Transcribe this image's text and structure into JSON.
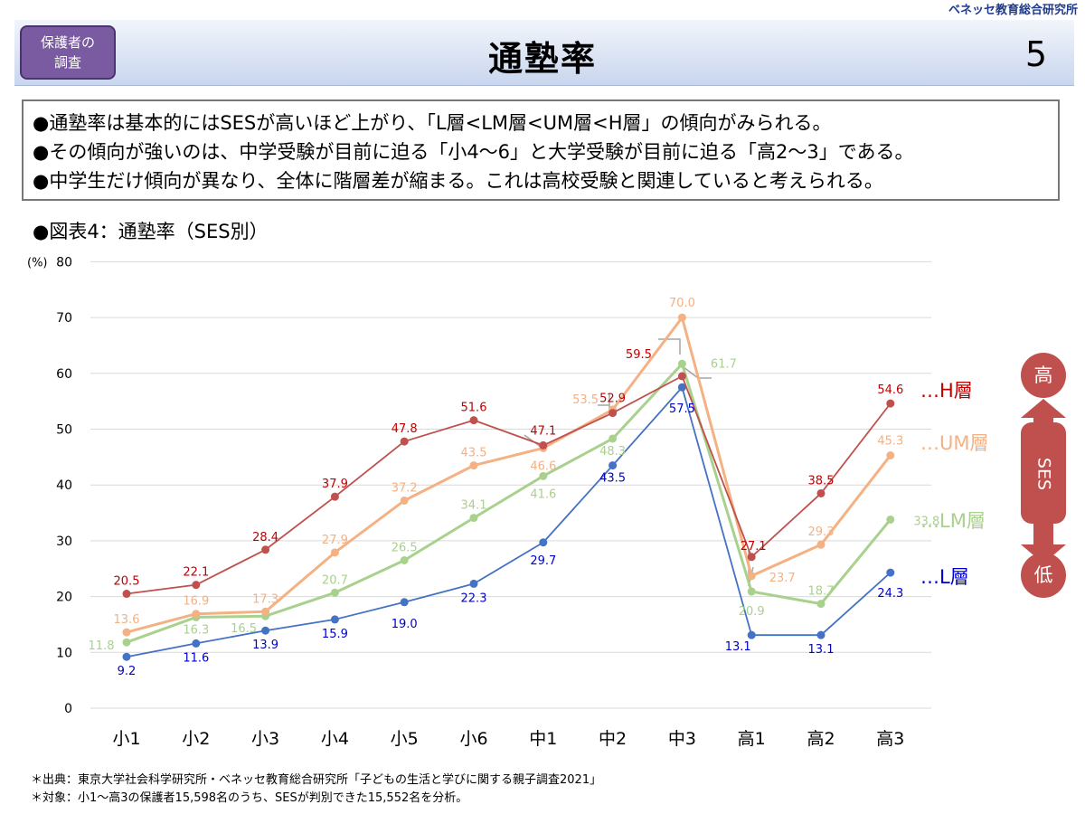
{
  "org": "ベネッセ教育総合研究所",
  "badge": {
    "line1": "保護者の",
    "line2": "調査"
  },
  "title": "通塾率",
  "page_number": "5",
  "summary": [
    "●通塾率は基本的にはSESが高いほど上がり、「L層<LM層<UM層<H層」の傾向がみられる。",
    "●その傾向が強いのは、中学受験が目前に迫る「小4～6」と大学受験が目前に迫る「高2～3」である。",
    "●中学生だけ傾向が異なり、全体に階層差が縮まる。これは高校受験と関連していると考えられる。"
  ],
  "figure_label": "●図表4：通塾率（SES別）",
  "footnotes": [
    "＊出典：東京大学社会科学研究所・ベネッセ教育総合研究所「子どもの生活と学びに関する親子調査2021」",
    "＊対象：小1～高3の保護者15,598名のうち、SESが判別できた15,552名を分析。"
  ],
  "ses_arrow": {
    "top": "高",
    "middle": "SES",
    "bottom": "低",
    "color": "#c0504d"
  },
  "chart_data": {
    "type": "line",
    "ylabel": "(%)",
    "ylim": [
      0,
      80
    ],
    "yticks": [
      0,
      10,
      20,
      30,
      40,
      50,
      60,
      70,
      80
    ],
    "grid": true,
    "categories": [
      "小1",
      "小2",
      "小3",
      "小4",
      "小5",
      "小6",
      "中1",
      "中2",
      "中3",
      "高1",
      "高2",
      "高3"
    ],
    "series": [
      {
        "name": "…H層",
        "color": "#c0504d",
        "label_color": "#c00000",
        "values": [
          20.5,
          22.1,
          28.4,
          37.9,
          47.8,
          51.6,
          47.1,
          52.9,
          59.5,
          27.1,
          38.5,
          54.6
        ]
      },
      {
        "name": "…UM層",
        "color": "#f4b183",
        "label_color": "#f4b183",
        "values": [
          13.6,
          16.9,
          17.3,
          27.9,
          37.2,
          43.5,
          46.6,
          53.5,
          70.0,
          23.7,
          29.3,
          45.3
        ]
      },
      {
        "name": "…LM層",
        "color": "#a9d18e",
        "label_color": "#a9d18e",
        "values": [
          11.8,
          16.3,
          16.5,
          20.7,
          26.5,
          34.1,
          41.6,
          48.3,
          61.7,
          20.9,
          18.7,
          33.8
        ]
      },
      {
        "name": "…L層",
        "color": "#4472c4",
        "label_color": "#0000cc",
        "values": [
          9.2,
          11.6,
          13.9,
          15.9,
          19.0,
          22.3,
          29.7,
          43.5,
          57.5,
          13.1,
          13.1,
          24.3
        ]
      }
    ]
  }
}
